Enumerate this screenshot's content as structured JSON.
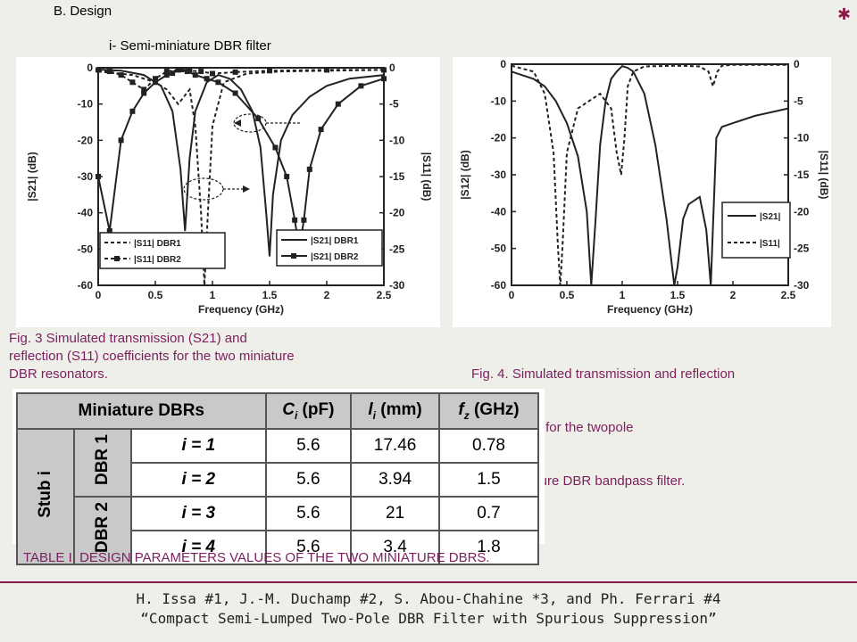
{
  "section_heading": "B. Design",
  "subsection_heading": "i- Semi-miniature DBR filter",
  "fig3": {
    "caption_lines": [
      "Fig. 3 Simulated transmission (S21) and",
      "reflection (S11) coefficients for the two miniature",
      "DBR resonators."
    ],
    "xlabel": "Frequency (GHz)",
    "ylabel_left": "|S21| (dB)",
    "ylabel_right": "|S11| (dB)",
    "xticks": [
      "0",
      "0.5",
      "1",
      "1.5",
      "2",
      "2.5"
    ],
    "yticks_left": [
      "0",
      "-10",
      "-20",
      "-30",
      "-40",
      "-50",
      "-60"
    ],
    "yticks_right": [
      "0",
      "-5",
      "-10",
      "-15",
      "-20",
      "-25",
      "-30"
    ],
    "legend_left": [
      "|S11| DBR1",
      "|S11| DBR2"
    ],
    "legend_right": [
      "|S21| DBR1",
      "|S21| DBR2"
    ]
  },
  "fig4": {
    "caption_lines": [
      "Fig. 4. Simulated transmission and reflection",
      " coefficients for the twopole",
      "semi-miniature DBR bandpass filter."
    ],
    "xlabel": "Frequency (GHz)",
    "ylabel_left": "|S12| (dB)",
    "ylabel_right": "|S11| (dB)",
    "xticks": [
      "0",
      "0.5",
      "1",
      "1.5",
      "2",
      "2.5"
    ],
    "yticks_left": [
      "0",
      "-10",
      "-20",
      "-30",
      "-40",
      "-50",
      "-60"
    ],
    "yticks_right": [
      "0",
      "-5",
      "-10",
      "-15",
      "-20",
      "-25",
      "-30"
    ],
    "legend": [
      "|S21|",
      "|S11|"
    ]
  },
  "chart_data": [
    {
      "type": "line",
      "xlabel": "Frequency (GHz)",
      "ylabel": "|S21| (dB)",
      "y2label": "|S11| (dB)",
      "xlim": [
        0,
        2.5
      ],
      "ylim": [
        -60,
        0
      ],
      "y2lim": [
        -30,
        0
      ],
      "series": [
        {
          "name": "|S21| DBR1",
          "axis": "left",
          "style": "solid",
          "x": [
            0,
            0.2,
            0.4,
            0.55,
            0.65,
            0.72,
            0.76,
            0.8,
            0.85,
            0.95,
            1.05,
            1.15,
            1.25,
            1.35,
            1.42,
            1.47,
            1.5,
            1.53,
            1.6,
            1.7,
            1.85,
            2.0,
            2.2,
            2.5
          ],
          "y": [
            -0.5,
            -0.8,
            -2,
            -5,
            -12,
            -28,
            -45,
            -25,
            -12,
            -4,
            -2,
            -3,
            -6,
            -12,
            -22,
            -40,
            -52,
            -35,
            -20,
            -13,
            -8,
            -5,
            -3,
            -2
          ]
        },
        {
          "name": "|S21| DBR2",
          "axis": "left",
          "style": "solid-square",
          "x": [
            0,
            0.1,
            0.2,
            0.3,
            0.4,
            0.5,
            0.6,
            0.65,
            0.7,
            0.73,
            0.78,
            0.85,
            0.95,
            1.05,
            1.2,
            1.4,
            1.55,
            1.65,
            1.72,
            1.76,
            1.8,
            1.85,
            1.95,
            2.1,
            2.3,
            2.5
          ],
          "y": [
            -30,
            -45,
            -20,
            -12,
            -7,
            -4,
            -2,
            -1.5,
            -0.5,
            -0.5,
            -1,
            -2,
            -3,
            -4,
            -7,
            -14,
            -22,
            -30,
            -42,
            -50,
            -42,
            -28,
            -17,
            -10,
            -5,
            -3
          ]
        },
        {
          "name": "|S11| DBR1",
          "axis": "right",
          "style": "dashed",
          "x": [
            0,
            0.3,
            0.5,
            0.6,
            0.7,
            0.75,
            0.8,
            0.85,
            0.9,
            0.93,
            0.96,
            1.0,
            1.1,
            1.3,
            1.6,
            2.0,
            2.5
          ],
          "y": [
            -0.5,
            -1,
            -2,
            -3,
            -5,
            -4,
            -3,
            -8,
            -20,
            -30,
            -20,
            -8,
            -2,
            -0.8,
            -0.5,
            -0.4,
            -0.3
          ]
        },
        {
          "name": "|S11| DBR2",
          "axis": "right",
          "style": "dashed-square",
          "x": [
            0,
            0.1,
            0.2,
            0.3,
            0.4,
            0.5,
            0.6,
            0.7,
            0.8,
            0.9,
            1.0,
            1.2,
            1.5,
            2.0,
            2.5
          ],
          "y": [
            -0.3,
            -0.5,
            -1,
            -2,
            -3,
            -1.5,
            -0.5,
            -0.3,
            -0.4,
            -0.5,
            -0.8,
            -0.6,
            -0.4,
            -0.3,
            -0.3
          ]
        }
      ]
    },
    {
      "type": "line",
      "xlabel": "Frequency (GHz)",
      "ylabel": "|S12| (dB)",
      "y2label": "|S11| (dB)",
      "xlim": [
        0,
        2.5
      ],
      "ylim": [
        -60,
        0
      ],
      "y2lim": [
        -30,
        0
      ],
      "series": [
        {
          "name": "|S21|",
          "axis": "left",
          "style": "solid",
          "x": [
            0,
            0.1,
            0.2,
            0.3,
            0.4,
            0.5,
            0.6,
            0.68,
            0.72,
            0.76,
            0.8,
            0.85,
            0.9,
            0.95,
            1.0,
            1.05,
            1.1,
            1.2,
            1.3,
            1.4,
            1.47,
            1.5,
            1.55,
            1.6,
            1.7,
            1.76,
            1.8,
            1.85,
            1.9,
            2.0,
            2.2,
            2.5
          ],
          "y": [
            -2,
            -3,
            -4,
            -6,
            -10,
            -16,
            -25,
            -40,
            -60,
            -42,
            -22,
            -10,
            -4,
            -2,
            -0.5,
            -1,
            -2,
            -8,
            -22,
            -42,
            -60,
            -55,
            -42,
            -38,
            -36,
            -45,
            -60,
            -20,
            -17,
            -16,
            -14,
            -12
          ]
        },
        {
          "name": "|S11|",
          "axis": "right",
          "style": "dashed",
          "x": [
            0,
            0.2,
            0.3,
            0.38,
            0.42,
            0.44,
            0.46,
            0.5,
            0.6,
            0.7,
            0.8,
            0.9,
            0.95,
            0.99,
            1.02,
            1.05,
            1.1,
            1.2,
            1.5,
            1.7,
            1.78,
            1.82,
            1.86,
            1.9,
            2.0,
            2.5
          ],
          "y": [
            -0.2,
            -1,
            -4,
            -12,
            -25,
            -30,
            -25,
            -12,
            -6,
            -5,
            -4,
            -6,
            -12,
            -15,
            -10,
            -3,
            -1,
            -0.3,
            -0.2,
            -0.3,
            -1,
            -3,
            -1,
            -0.2,
            -0.1,
            -0.1
          ]
        }
      ]
    },
    {
      "type": "table",
      "title": "TABLE I. DESIGN PARAMETERS VALUES OF THE TWO MINIATURE DBRS.",
      "columns": [
        "Miniature DBRs",
        "",
        "",
        "Ci (pF)",
        "li (mm)",
        "fz (GHz)"
      ],
      "rows": [
        {
          "group": "DBR 1",
          "stub": "i = 1",
          "C": "5.6",
          "l": "17.46",
          "f": "0.78"
        },
        {
          "group": "DBR 1",
          "stub": "i = 2",
          "C": "5.6",
          "l": "3.94",
          "f": "1.5"
        },
        {
          "group": "DBR 2",
          "stub": "i = 3",
          "C": "5.6",
          "l": "21",
          "f": "0.7"
        },
        {
          "group": "DBR 2",
          "stub": "i = 4",
          "C": "5.6",
          "l": "3.4",
          "f": "1.8"
        }
      ]
    }
  ],
  "table": {
    "header_main": "Miniature DBRs",
    "h_c": "C",
    "h_c_sub": "i",
    "h_c_unit": " (pF)",
    "h_l": "l",
    "h_l_sub": "i",
    "h_l_unit": " (mm)",
    "h_f": "f",
    "h_f_sub": "z",
    "h_f_unit": " (GHz)",
    "stub_label": "Stub i",
    "dbr1": "DBR 1",
    "dbr2": "DBR 2",
    "rows": [
      {
        "stub": "i = 1",
        "C": "5.6",
        "l": "17.46",
        "f": "0.78"
      },
      {
        "stub": "i = 2",
        "C": "5.6",
        "l": "3.94",
        "f": "1.5"
      },
      {
        "stub": "i = 3",
        "C": "5.6",
        "l": "21",
        "f": "0.7"
      },
      {
        "stub": "i = 4",
        "C": "5.6",
        "l": "3.4",
        "f": "1.8"
      }
    ],
    "caption": "TABLE I. DESIGN PARAMETERS VALUES OF THE TWO MINIATURE DBRS."
  },
  "footer": {
    "authors": "H. Issa #1, J.-M. Duchamp #2, S. Abou-Chahine *3, and Ph. Ferrari #4",
    "title": "“Compact Semi-Lumped Two-Pole DBR Filter with Spurious Suppression”"
  },
  "colors": {
    "accent": "#8b1a4a",
    "caption": "#7a1f5f",
    "slide_bg": "#efefe9",
    "table_header": "#c9c9c9"
  }
}
